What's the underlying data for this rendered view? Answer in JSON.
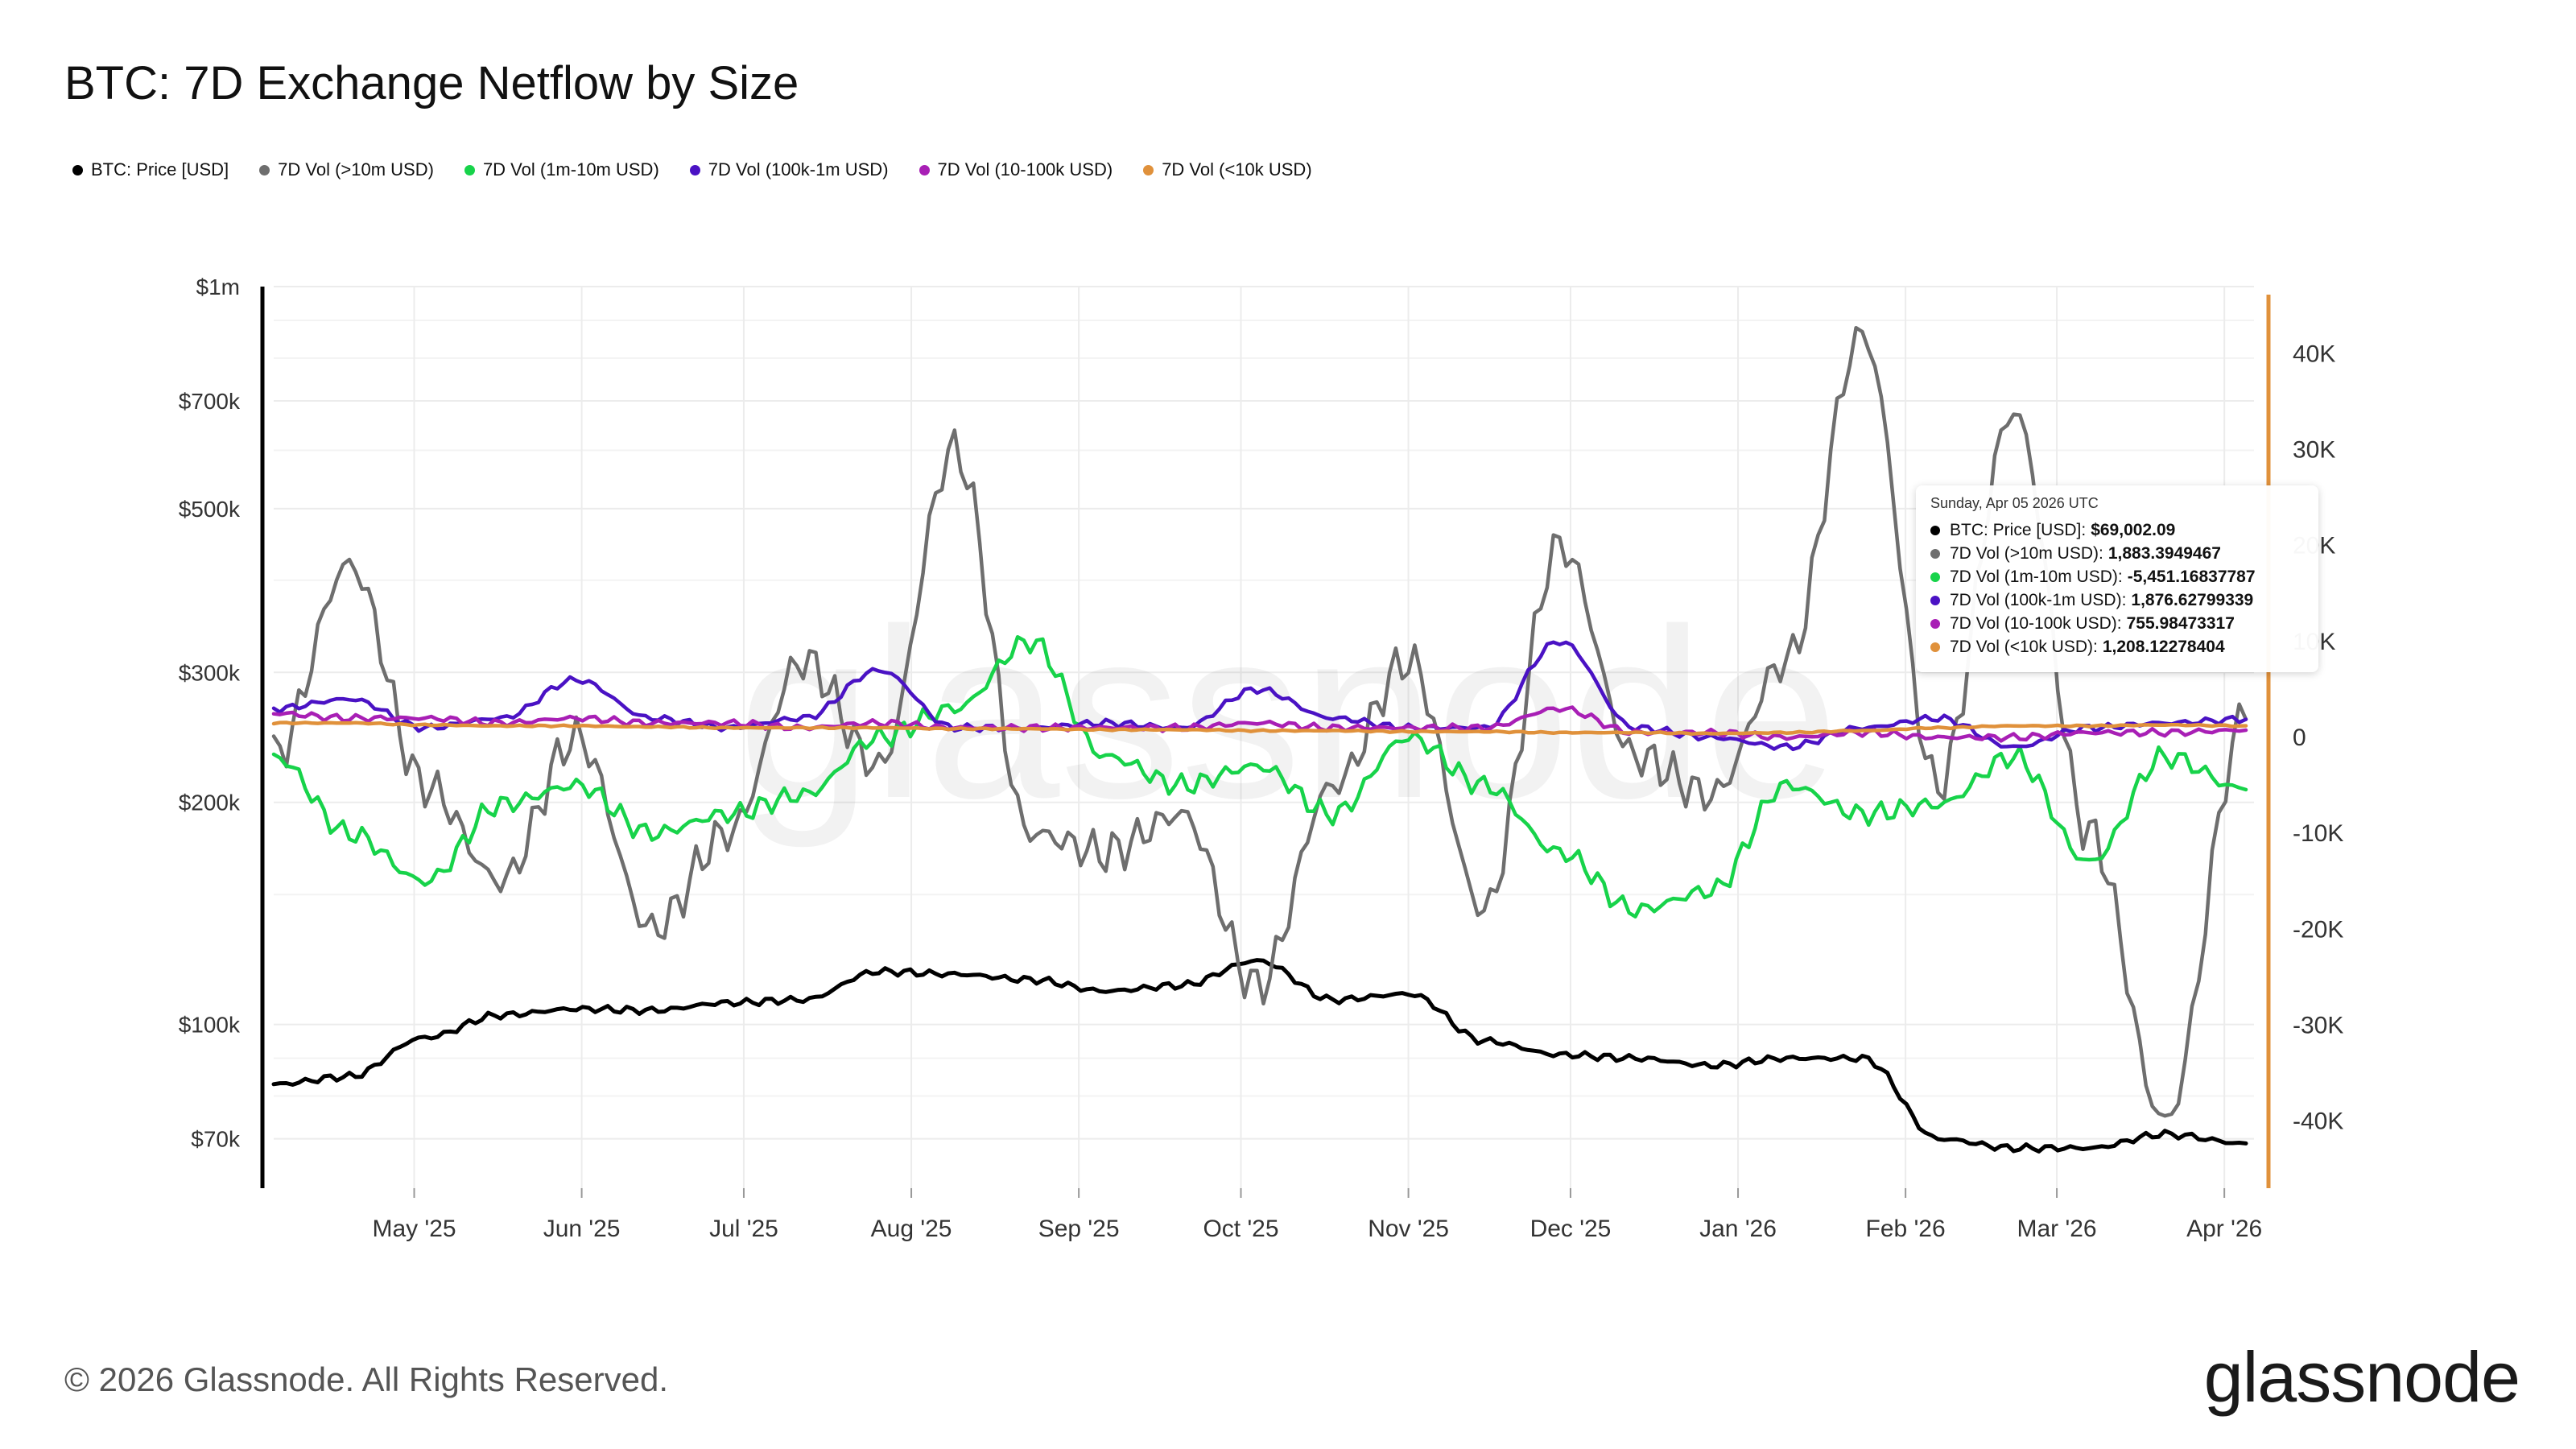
{
  "title": "BTC: 7D Exchange Netflow by Size",
  "legend": [
    {
      "label": "BTC: Price [USD]",
      "color": "#000000"
    },
    {
      "label": "7D Vol (>10m USD)",
      "color": "#6e6e6e"
    },
    {
      "label": "7D Vol (1m-10m USD)",
      "color": "#17d34a"
    },
    {
      "label": "7D Vol (100k-1m USD)",
      "color": "#4a12c4"
    },
    {
      "label": "7D Vol (10-100k USD)",
      "color": "#a81fb5"
    },
    {
      "label": "7D Vol (<10k USD)",
      "color": "#e0913b"
    }
  ],
  "tooltip": {
    "date": "Sunday, Apr 05 2026 UTC",
    "rows": [
      {
        "label": "BTC: Price [USD]:",
        "value": "$69,002.09",
        "color": "#000000"
      },
      {
        "label": "7D Vol (>10m USD):",
        "value": "1,883.3949467",
        "color": "#6e6e6e"
      },
      {
        "label": "7D Vol (1m-10m USD):",
        "value": "-5,451.16837787",
        "color": "#17d34a"
      },
      {
        "label": "7D Vol (100k-1m USD):",
        "value": "1,876.62799339",
        "color": "#4a12c4"
      },
      {
        "label": "7D Vol (10-100k USD):",
        "value": "755.98473317",
        "color": "#a81fb5"
      },
      {
        "label": "7D Vol (<10k USD):",
        "value": "1,208.12278404",
        "color": "#e0913b"
      }
    ]
  },
  "watermark": "glassnode",
  "footer": {
    "copyright": "© 2026 Glassnode. All Rights Reserved.",
    "brand": "glassnode"
  },
  "chart_data": {
    "type": "line",
    "title": "BTC: 7D Exchange Netflow by Size",
    "x_tick_labels": [
      "May '25",
      "Jun '25",
      "Jul '25",
      "Aug '25",
      "Sep '25",
      "Oct '25",
      "Nov '25",
      "Dec '25",
      "Jan '26",
      "Feb '26",
      "Mar '26",
      "Apr '26"
    ],
    "y_left": {
      "scale": "log",
      "tick_labels": [
        "$1m",
        "$700k",
        "$500k",
        "$300k",
        "$200k",
        "$100k",
        "$70k"
      ],
      "tick_values": [
        1000000,
        700000,
        500000,
        300000,
        200000,
        100000,
        70000
      ],
      "range": [
        60000,
        1000000
      ],
      "axis_color": "#000000"
    },
    "y_right": {
      "tick_labels": [
        "40K",
        "30K",
        "20K",
        "10K",
        "0",
        "-10K",
        "-20K",
        "-30K",
        "-40K"
      ],
      "tick_values": [
        40000,
        30000,
        20000,
        10000,
        0,
        -10000,
        -20000,
        -30000,
        -40000
      ],
      "range": [
        -47000,
        47000
      ],
      "axis_color": "#e0913b"
    },
    "grid": true,
    "legend_position": "top-left",
    "x": [
      "2025-04-05",
      "2025-04-19",
      "2025-05-03",
      "2025-05-17",
      "2025-05-31",
      "2025-06-14",
      "2025-06-28",
      "2025-07-12",
      "2025-07-26",
      "2025-08-09",
      "2025-08-23",
      "2025-09-06",
      "2025-09-20",
      "2025-10-04",
      "2025-10-18",
      "2025-11-01",
      "2025-11-15",
      "2025-11-29",
      "2025-12-13",
      "2025-12-27",
      "2026-01-10",
      "2026-01-24",
      "2026-02-07",
      "2026-02-21",
      "2026-03-07",
      "2026-03-21",
      "2026-04-05"
    ],
    "series": [
      {
        "name": "BTC: Price [USD]",
        "axis": "left",
        "color": "#000000",
        "values": [
          83000,
          85000,
          96000,
          103000,
          105000,
          104500,
          107000,
          108000,
          118000,
          117000,
          115000,
          111000,
          113000,
          122000,
          108000,
          110000,
          95000,
          91000,
          90000,
          88000,
          90000,
          90000,
          70000,
          68000,
          68000,
          71000,
          69002
        ]
      },
      {
        "name": "7D Vol (>10m USD)",
        "axis": "right",
        "color": "#6e6e6e",
        "values": [
          -2000,
          18000,
          -5000,
          -15000,
          0,
          -20000,
          -10000,
          8000,
          -3000,
          30000,
          -10000,
          -12000,
          -8000,
          -26000,
          -5000,
          8000,
          -18000,
          20000,
          -2000,
          -6000,
          8000,
          42000,
          -5000,
          34000,
          -10000,
          -40000,
          1883
        ]
      },
      {
        "name": "7D Vol (1m-10m USD)",
        "axis": "right",
        "color": "#17d34a",
        "values": [
          -2000,
          -10000,
          -15000,
          -7000,
          -5000,
          -10000,
          -8000,
          -6000,
          0,
          3000,
          10000,
          -2000,
          -5000,
          -3000,
          -8000,
          0,
          -5000,
          -12000,
          -18000,
          -16000,
          -5000,
          -8000,
          -7000,
          -2000,
          -13000,
          -2000,
          -5451
        ]
      },
      {
        "name": "7D Vol (100k-1m USD)",
        "axis": "right",
        "color": "#4a12c4",
        "values": [
          3000,
          4000,
          1000,
          2000,
          6000,
          2000,
          1000,
          2000,
          7000,
          1000,
          1000,
          1500,
          1000,
          5000,
          2000,
          1000,
          1000,
          10000,
          1000,
          0,
          -1000,
          1000,
          2000,
          -1000,
          1000,
          1500,
          1877
        ]
      },
      {
        "name": "7D Vol (10-100k USD)",
        "axis": "right",
        "color": "#a81fb5",
        "values": [
          2500,
          2000,
          2000,
          1500,
          2000,
          1500,
          1500,
          1000,
          1500,
          1000,
          1000,
          1000,
          1000,
          1500,
          1000,
          1000,
          1000,
          3000,
          500,
          500,
          0,
          500,
          0,
          0,
          500,
          500,
          756
        ]
      },
      {
        "name": "7D Vol (<10k USD)",
        "axis": "right",
        "color": "#e0913b",
        "values": [
          1500,
          1500,
          1300,
          1200,
          1200,
          1100,
          1000,
          1000,
          1000,
          900,
          900,
          800,
          800,
          700,
          700,
          600,
          600,
          500,
          500,
          400,
          500,
          700,
          1000,
          1200,
          1200,
          1300,
          1208
        ]
      }
    ]
  }
}
